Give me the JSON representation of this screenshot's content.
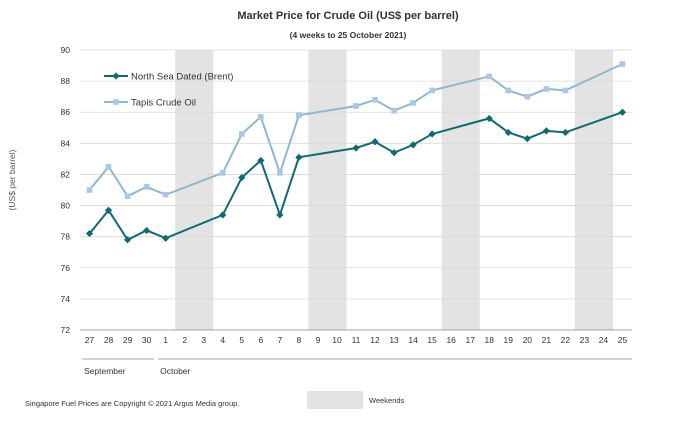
{
  "chart_data": {
    "type": "line",
    "title": "Market Price for Crude Oil  (US$  per barrel)",
    "subtitle": "(4 weeks to 25 October 2021)",
    "ylabel": "(US$ per barrel)",
    "ylim": [
      72,
      90
    ],
    "yticks": [
      72,
      74,
      76,
      78,
      80,
      82,
      84,
      86,
      88,
      90
    ],
    "grid": true,
    "legend_position": "top-left",
    "x": [
      "27",
      "28",
      "29",
      "30",
      "1",
      "2",
      "3",
      "4",
      "5",
      "6",
      "7",
      "8",
      "9",
      "10",
      "11",
      "12",
      "13",
      "14",
      "15",
      "16",
      "17",
      "18",
      "19",
      "20",
      "21",
      "22",
      "23",
      "24",
      "25"
    ],
    "months": [
      {
        "label": "September",
        "from": "27",
        "to": "30"
      },
      {
        "label": "October",
        "from": "1",
        "to": "25"
      }
    ],
    "weekends": [
      {
        "from": "2",
        "to": "3"
      },
      {
        "from": "9",
        "to": "10"
      },
      {
        "from": "16",
        "to": "17"
      },
      {
        "from": "23",
        "to": "24"
      }
    ],
    "series": [
      {
        "name": "North Sea Dated (Brent)",
        "color": "#0e6b75",
        "marker": "diamond",
        "points": [
          {
            "x": "27",
            "y": 78.2
          },
          {
            "x": "28",
            "y": 79.7
          },
          {
            "x": "29",
            "y": 77.8
          },
          {
            "x": "30",
            "y": 78.4
          },
          {
            "x": "1",
            "y": 77.9
          },
          {
            "x": "4",
            "y": 79.4
          },
          {
            "x": "5",
            "y": 81.8
          },
          {
            "x": "6",
            "y": 82.9
          },
          {
            "x": "7",
            "y": 79.4
          },
          {
            "x": "8",
            "y": 83.1
          },
          {
            "x": "11",
            "y": 83.7
          },
          {
            "x": "12",
            "y": 84.1
          },
          {
            "x": "13",
            "y": 83.4
          },
          {
            "x": "14",
            "y": 83.9
          },
          {
            "x": "15",
            "y": 84.6
          },
          {
            "x": "18",
            "y": 85.6
          },
          {
            "x": "19",
            "y": 84.7
          },
          {
            "x": "20",
            "y": 84.3
          },
          {
            "x": "21",
            "y": 84.8
          },
          {
            "x": "22",
            "y": 84.7
          },
          {
            "x": "25",
            "y": 86.0
          }
        ]
      },
      {
        "name": "Tapis Crude Oil",
        "color": "#8fb8cc",
        "marker_color": "#a7c8e8",
        "marker": "square",
        "points": [
          {
            "x": "27",
            "y": 81.0
          },
          {
            "x": "28",
            "y": 82.5
          },
          {
            "x": "29",
            "y": 80.6
          },
          {
            "x": "30",
            "y": 81.2
          },
          {
            "x": "1",
            "y": 80.7
          },
          {
            "x": "4",
            "y": 82.1
          },
          {
            "x": "5",
            "y": 84.6
          },
          {
            "x": "6",
            "y": 85.7
          },
          {
            "x": "7",
            "y": 82.1
          },
          {
            "x": "8",
            "y": 85.8
          },
          {
            "x": "11",
            "y": 86.4
          },
          {
            "x": "12",
            "y": 86.8
          },
          {
            "x": "13",
            "y": 86.1
          },
          {
            "x": "14",
            "y": 86.6
          },
          {
            "x": "15",
            "y": 87.4
          },
          {
            "x": "18",
            "y": 88.3
          },
          {
            "x": "19",
            "y": 87.4
          },
          {
            "x": "20",
            "y": 87.0
          },
          {
            "x": "21",
            "y": 87.5
          },
          {
            "x": "22",
            "y": 87.4
          },
          {
            "x": "25",
            "y": 89.1
          }
        ]
      }
    ]
  },
  "footer": {
    "copyright": "Singapore  Fuel Prices are Copyright © 2021  Argus Media group.",
    "weekends_label": "Weekends"
  },
  "colors": {
    "weekend_shade": "#e3e3e3",
    "grid": "#d9d9d9",
    "axis": "#888888"
  }
}
